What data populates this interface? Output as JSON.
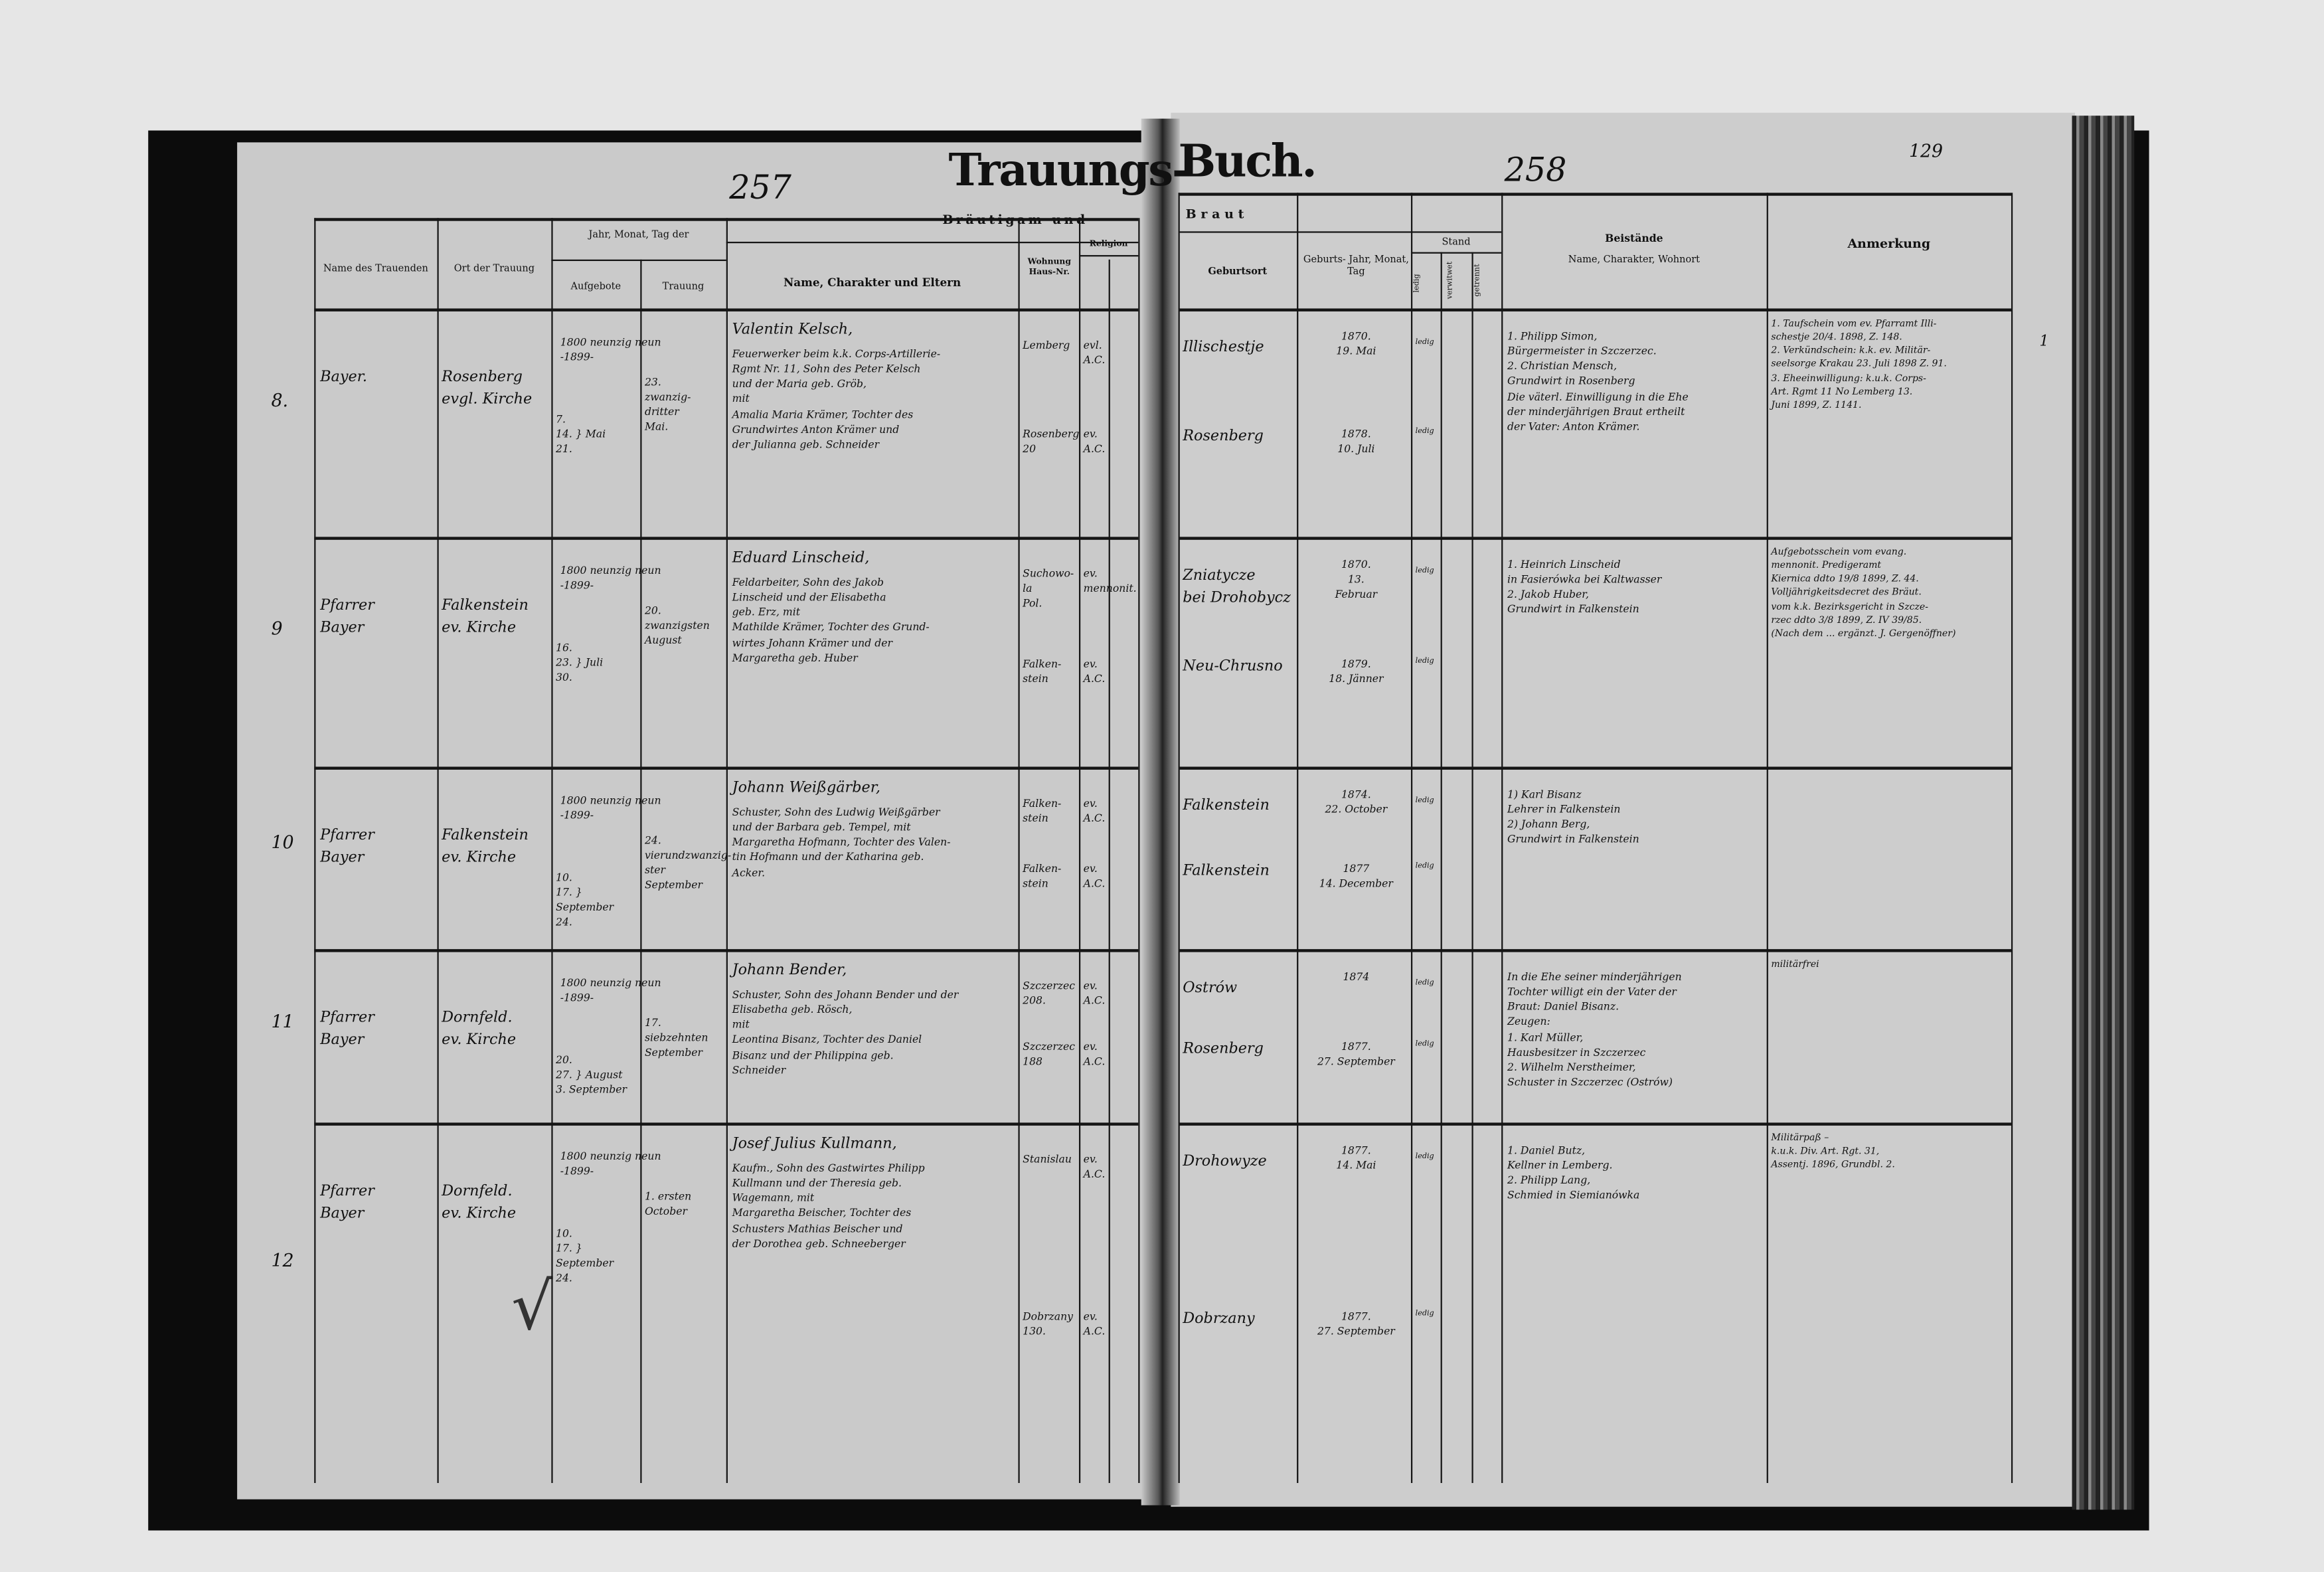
{
  "header": {
    "title_left": "Trauungs-",
    "title_right": "Buch.",
    "left_page_number": "257",
    "right_page_number": "258",
    "folio_number": "129",
    "right_margin_mark": "1",
    "check_mark": "√"
  },
  "columns_left": {
    "officiant": "Name des Trauenden",
    "place": "Ort der Trauung",
    "date_group": "Jahr, Monat, Tag der",
    "banns": "Aufgebote",
    "wedding": "Trauung",
    "groom_group": "Bräutigam und",
    "name": "Name, Charakter und Eltern",
    "residence": "Wohnung Haus-Nr.",
    "religion": "Religion"
  },
  "columns_right": {
    "bride_group": "Braut",
    "birthplace": "Geburtsort",
    "birth": "Geburts- Jahr, Monat, Tag",
    "status": "Stand",
    "single": "ledig",
    "widowed": "verwitwet",
    "separated": "getrennt",
    "witnesses_title": "Beistände",
    "witnesses_sub": "Name, Charakter, Wohnort",
    "remarks": "Anmerkung"
  },
  "entries": [
    {
      "number": "8.",
      "officiant": "Bayer.",
      "place": "Rosenberg\nevgl. Kirche",
      "year": "1800 neunzig neun\n-1899-",
      "banns": "7.\n14. } Mai\n21.",
      "wedding": "23.\nzwanzig-\ndritter\nMai.",
      "groom_name": "Valentin Kelsch,",
      "groom_text": "Feuerwerker beim k.k. Corps-Artillerie-\nRgmt Nr. 11, Sohn des Peter Kelsch\nund der Maria geb. Gröb,\n           mit\nAmalia Maria Krämer, Tochter des\nGrundwirtes Anton Krämer und\nder Julianna geb. Schneider",
      "residence_groom": "Lemberg",
      "residence_bride": "Rosenberg\n20",
      "religion_groom": "evl.\nA.C.",
      "religion_bride": "ev.\nA.C.",
      "birthplace_groom": "Illischestje",
      "birthplace_bride": "Rosenberg",
      "birth_groom": "1870.\n19. Mai",
      "birth_bride": "1878.\n10. Juli",
      "status_groom": "ledig",
      "status_bride": "ledig",
      "witnesses": "1. Philipp Simon,\nBürgermeister in Szczerzec.\n2. Christian Mensch,\nGrundwirt in Rosenberg\nDie väterl. Einwilligung in die Ehe\nder minderjährigen Braut ertheilt\nder Vater: Anton Krämer.",
      "remarks": "1. Taufschein vom ev. Pfarramt Illi-\nschestje 20/4. 1898, Z. 148.\n2. Verkündschein: k.k. ev. Militär-\nseelsorge Krakau 23. Juli 1898 Z. 91.\n3. Eheeinwilligung: k.u.k. Corps-\nArt. Rgmt 11 No Lemberg 13.\nJuni 1899, Z. 1141."
    },
    {
      "number": "9",
      "officiant": "Pfarrer\nBayer",
      "place": "Falkenstein\nev. Kirche",
      "year": "1800 neunzig neun\n-1899-",
      "banns": "16.\n23. } Juli\n30.",
      "wedding": "20.\nzwanzigsten\nAugust",
      "groom_name": "Eduard Linscheid,",
      "groom_text": "Feldarbeiter, Sohn des Jakob\nLinscheid und der Elisabetha\ngeb. Erz,  mit\nMathilde Krämer, Tochter des Grund-\nwirtes Johann Krämer und der\nMargaretha geb. Huber",
      "residence_groom": "Suchowo-\nla\nPol.",
      "residence_bride": "Falken-\nstein",
      "religion_groom": "ev.\nmennonit.",
      "religion_bride": "ev.\nA.C.",
      "birthplace_groom": "Zniatycze\nbei Drohobycz",
      "birthplace_bride": "Neu-Chrusno",
      "birth_groom": "1870.\n13.\nFebruar",
      "birth_bride": "1879.\n18. Jänner",
      "status_groom": "ledig",
      "status_bride": "ledig",
      "witnesses": "1. Heinrich Linscheid\nin Fasierówka bei Kaltwasser\n2. Jakob Huber,\nGrundwirt in Falkenstein",
      "remarks": "Aufgebotsschein vom evang.\nmennonit. Predigeramt\nKiernica ddto 19/8 1899, Z. 44.\nVolljährigkeitsdecret des Bräut.\nvom k.k. Bezirksgericht in Szcze-\nrzec ddto 3/8 1899, Z. IV 39/85.\n(Nach dem ... ergänzt. J. Gergenöffner)"
    },
    {
      "number": "10",
      "officiant": "Pfarrer\nBayer",
      "place": "Falkenstein\nev. Kirche",
      "year": "1800 neunzig neun\n-1899-",
      "banns": "10.\n17. } September\n24.",
      "wedding": "24.\nvierundzwanzig-\nster September",
      "groom_name": "Johann Weißgärber,",
      "groom_text": "Schuster, Sohn des Ludwig Weißgärber\nund der Barbara geb. Tempel,  mit\nMargaretha Hofmann, Tochter des Valen-\ntin Hofmann und der Katharina geb.\nAcker.",
      "residence_groom": "Falken-\nstein",
      "residence_bride": "Falken-\nstein",
      "religion_groom": "ev.\nA.C.",
      "religion_bride": "ev.\nA.C.",
      "birthplace_groom": "Falkenstein",
      "birthplace_bride": "Falkenstein",
      "birth_groom": "1874.\n22. October",
      "birth_bride": "1877\n14. December",
      "status_groom": "ledig",
      "status_bride": "ledig",
      "witnesses": "1) Karl Bisanz\nLehrer in Falkenstein\n2) Johann Berg,\nGrundwirt in Falkenstein",
      "remarks": ""
    },
    {
      "number": "11",
      "officiant": "Pfarrer\nBayer",
      "place": "Dornfeld.\nev. Kirche",
      "year": "1800 neunzig neun\n-1899-",
      "banns": "20.\n27. } August\n3. September",
      "wedding": "17. siebzehnten\nSeptember",
      "groom_name": "Johann Bender,",
      "groom_text": "Schuster, Sohn des Johann Bender und der\nElisabetha geb. Rösch,\n           mit\nLeontina Bisanz, Tochter des Daniel\nBisanz und der Philippina geb.\nSchneider",
      "residence_groom": "Szczerzec\n208.",
      "residence_bride": "Szczerzec\n188",
      "religion_groom": "ev.\nA.C.",
      "religion_bride": "ev.\nA.C.",
      "birthplace_groom": "Ostrów",
      "birthplace_bride": "Rosenberg",
      "birth_groom": "1874",
      "birth_bride": "1877.\n27. September",
      "status_groom": "ledig",
      "status_bride": "ledig",
      "witnesses": "In die Ehe seiner minderjährigen\nTochter willigt ein der Vater der\nBraut: Daniel Bisanz.\nZeugen:\n1. Karl Müller,\nHausbesitzer in Szczerzec\n2. Wilhelm Nerstheimer,\nSchuster in Szczerzec (Ostrów)",
      "remarks": "militärfrei"
    },
    {
      "number": "12",
      "officiant": "Pfarrer\nBayer",
      "place": "Dornfeld.\nev. Kirche",
      "year": "1800 neunzig neun\n-1899-",
      "banns": "10.\n17. } September\n24.",
      "wedding": "1. ersten\nOctober",
      "groom_name": "Josef Julius Kullmann,",
      "groom_text": "Kaufm., Sohn des Gastwirtes Philipp\nKullmann und der Theresia geb.\nWagemann,   mit\nMargaretha Beischer, Tochter des\nSchusters Mathias Beischer und\nder Dorothea geb. Schneeberger",
      "residence_groom": "Stanislau",
      "residence_bride": "Dobrzany\n130.",
      "religion_groom": "ev.\nA.C.",
      "religion_bride": "ev.\nA.C.",
      "birthplace_groom": "Drohowyze",
      "birthplace_bride": "Dobrzany",
      "birth_groom": "1877.\n14. Mai",
      "birth_bride": "1877.\n27. September",
      "status_groom": "ledig",
      "status_bride": "ledig",
      "witnesses": "1. Daniel Butz,\nKellner in Lemberg.\n2. Philipp Lang,\nSchmied in Siemianówka",
      "remarks": "Militärpaß –\nk.u.k. Div. Art. Rgt. 31,\nAssentj. 1896, Grundbl. 2."
    }
  ]
}
